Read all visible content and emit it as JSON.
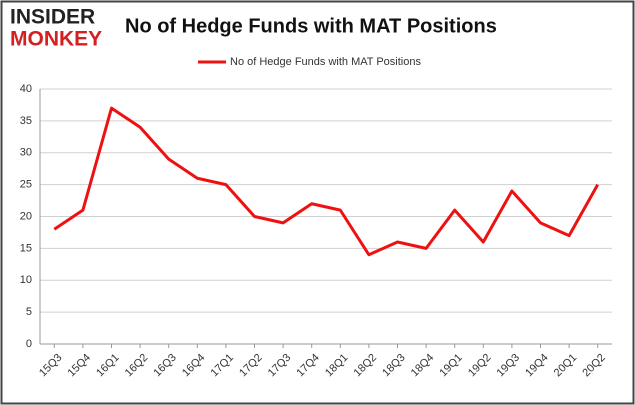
{
  "logo": {
    "line1": "INSIDER",
    "line2": "MONKEY"
  },
  "chart_data": {
    "type": "line",
    "title": "No of Hedge Funds with MAT Positions",
    "categories": [
      "15Q3",
      "15Q4",
      "16Q1",
      "16Q2",
      "16Q3",
      "16Q4",
      "17Q1",
      "17Q2",
      "17Q3",
      "17Q4",
      "18Q1",
      "18Q2",
      "18Q3",
      "18Q4",
      "19Q1",
      "19Q2",
      "19Q3",
      "19Q4",
      "20Q1",
      "20Q2"
    ],
    "series": [
      {
        "name": "No of Hedge Funds with MAT Positions",
        "color": "#ee1111",
        "values": [
          18,
          21,
          37,
          34,
          29,
          26,
          25,
          20,
          19,
          22,
          21,
          14,
          16,
          15,
          21,
          16,
          24,
          19,
          17,
          25
        ]
      }
    ],
    "ylim": [
      0,
      40
    ],
    "yticks": [
      0,
      5,
      10,
      15,
      20,
      25,
      30,
      35,
      40
    ],
    "grid": true,
    "legend": "top"
  }
}
